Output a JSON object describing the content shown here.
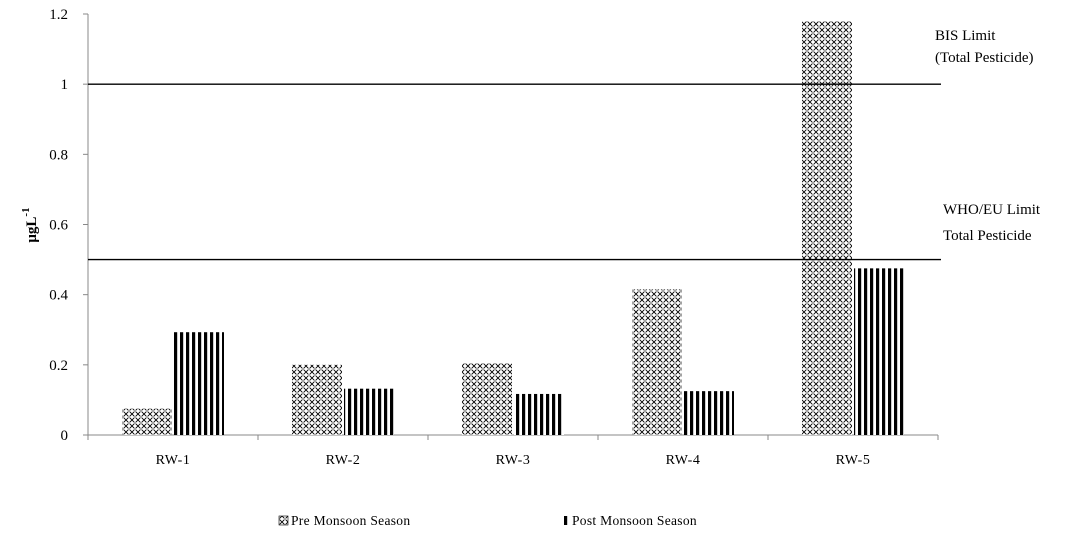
{
  "chart_data": {
    "type": "bar",
    "categories": [
      "RW-1",
      "RW-2",
      "RW-3",
      "RW-4",
      "RW-5"
    ],
    "series": [
      {
        "name": "Pre Monsoon Season",
        "values": [
          0.075,
          0.2,
          0.205,
          0.415,
          1.18
        ],
        "pattern": "crosshatch"
      },
      {
        "name": "Post Monsoon Season",
        "values": [
          0.293,
          0.132,
          0.117,
          0.125,
          0.475
        ],
        "pattern": "vertical-stripes"
      }
    ],
    "ylabel": "μgL",
    "ylabel_superscript": "-1",
    "ylim": [
      0,
      1.2
    ],
    "yticks": [
      "0",
      "0.2",
      "0.4",
      "0.6",
      "0.8",
      "1",
      "1.2"
    ],
    "reference_lines": [
      {
        "value": 1.0,
        "label_line1": "BIS Limit",
        "label_line2": "(Total Pesticide)"
      },
      {
        "value": 0.5,
        "label_line1": "WHO/EU Limit",
        "label_line2": "Total Pesticide"
      }
    ],
    "legend_position": "bottom",
    "grid": false,
    "colors": {
      "bar_pattern": "#000000",
      "background": "#ffffff",
      "axis": "#888888"
    }
  }
}
